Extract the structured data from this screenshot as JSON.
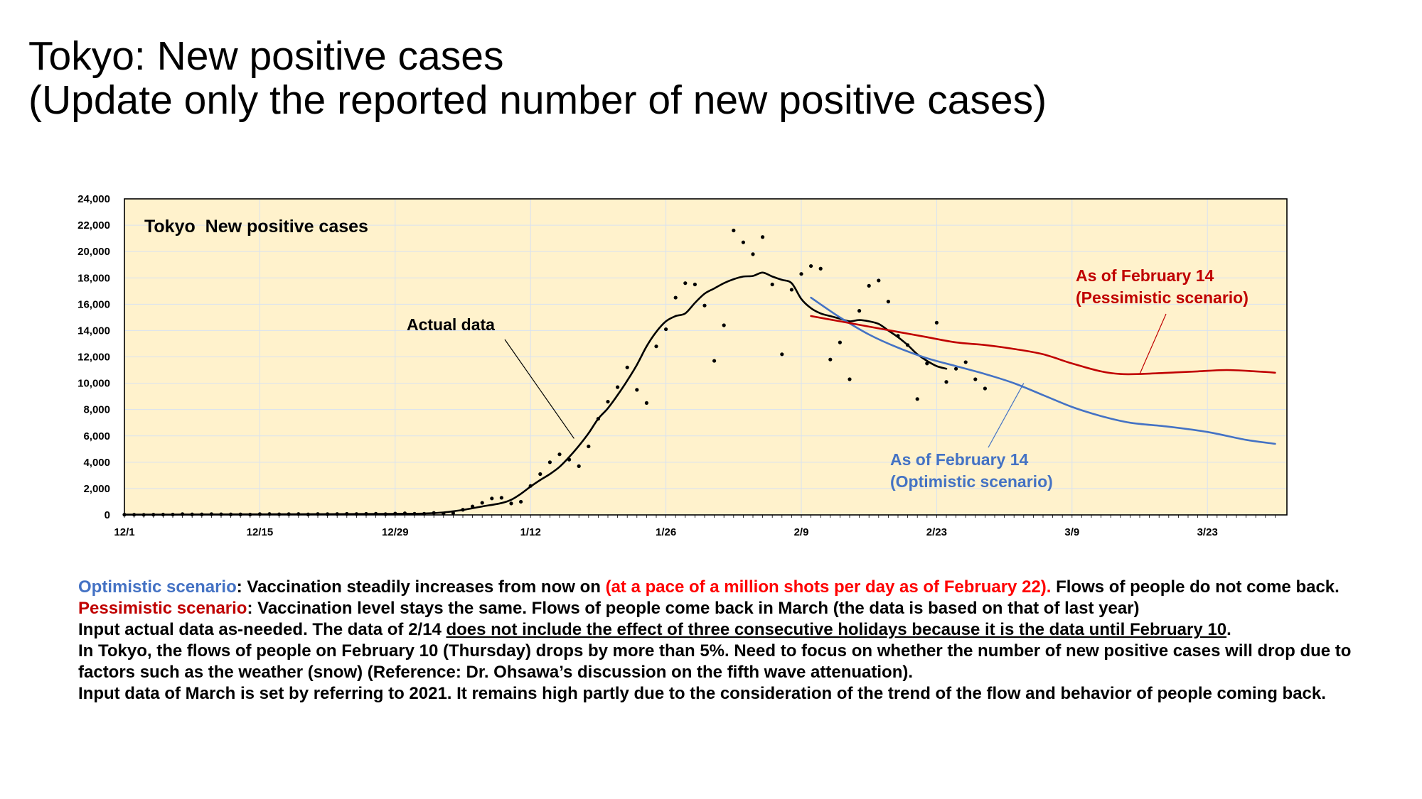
{
  "page": {
    "title_line1": "Tokyo: New positive cases",
    "title_line2": "(Update only the reported number of new positive cases)"
  },
  "notes": {
    "optimistic_label": "Optimistic scenario",
    "optimistic_text1": ": Vaccination steadily increases from now on ",
    "optimistic_highlight": "(at a pace of a million shots per day as of February 22).",
    "optimistic_text2": " Flows of people do not come back.",
    "pessimistic_label": "Pessimistic scenario",
    "pessimistic_text": ": Vaccination level stays the same. Flows of people come back in March (the data is based on that of last year)",
    "input_text1": "Input actual data as-needed. The data of 2/14 ",
    "input_underline": "does not include the effect of three consecutive holidays because it is the data until February 10",
    "input_text2": ".",
    "flows_text": "In Tokyo, the flows of people on February 10 (Thursday) drops by more than 5%. Need to focus on whether the number of new positive cases will drop due to factors such as the weather (snow) (Reference: Dr. Ohsawa’s discussion on the fifth wave attenuation).",
    "march_text": "Input data of March is set by referring to 2021. It remains high partly due to the consideration of the trend of the flow and behavior of people coming back."
  },
  "colors": {
    "plot_background": "#FFF2CC",
    "grid": "#D9E2F0",
    "actual": "#000000",
    "optimistic": "#4472C4",
    "pessimistic": "#C00000",
    "highlight_text": "#FF0000"
  },
  "chart_data": {
    "type": "line",
    "title": "Tokyo  New positive cases",
    "xlabel": "",
    "ylabel": "",
    "x_start_date": "12/1",
    "xlim": [
      0,
      119
    ],
    "ylim": [
      0,
      24000
    ],
    "grid": true,
    "x_ticks": [
      {
        "day": 0,
        "label": "12/1"
      },
      {
        "day": 14,
        "label": "12/15"
      },
      {
        "day": 28,
        "label": "12/29"
      },
      {
        "day": 42,
        "label": "1/12"
      },
      {
        "day": 56,
        "label": "1/26"
      },
      {
        "day": 70,
        "label": "2/9"
      },
      {
        "day": 84,
        "label": "2/23"
      },
      {
        "day": 98,
        "label": "3/9"
      },
      {
        "day": 112,
        "label": "3/23"
      }
    ],
    "y_ticks": [
      {
        "value": 0,
        "label": "0"
      },
      {
        "value": 2000,
        "label": "2,000"
      },
      {
        "value": 4000,
        "label": "4,000"
      },
      {
        "value": 6000,
        "label": "6,000"
      },
      {
        "value": 8000,
        "label": "8,000"
      },
      {
        "value": 10000,
        "label": "10,000"
      },
      {
        "value": 12000,
        "label": "12,000"
      },
      {
        "value": 14000,
        "label": "14,000"
      },
      {
        "value": 16000,
        "label": "16,000"
      },
      {
        "value": 18000,
        "label": "18,000"
      },
      {
        "value": 20000,
        "label": "20,000"
      },
      {
        "value": 22000,
        "label": "22,000"
      },
      {
        "value": 24000,
        "label": "24,000"
      }
    ],
    "daily_points": [
      [
        0,
        20
      ],
      [
        1,
        15
      ],
      [
        2,
        10
      ],
      [
        3,
        20
      ],
      [
        4,
        25
      ],
      [
        5,
        30
      ],
      [
        6,
        60
      ],
      [
        7,
        40
      ],
      [
        8,
        40
      ],
      [
        9,
        60
      ],
      [
        10,
        50
      ],
      [
        11,
        40
      ],
      [
        12,
        40
      ],
      [
        13,
        30
      ],
      [
        14,
        60
      ],
      [
        15,
        70
      ],
      [
        16,
        50
      ],
      [
        17,
        60
      ],
      [
        18,
        70
      ],
      [
        19,
        40
      ],
      [
        20,
        70
      ],
      [
        21,
        60
      ],
      [
        22,
        70
      ],
      [
        23,
        80
      ],
      [
        24,
        70
      ],
      [
        25,
        80
      ],
      [
        26,
        90
      ],
      [
        27,
        60
      ],
      [
        28,
        100
      ],
      [
        29,
        120
      ],
      [
        30,
        90
      ],
      [
        31,
        90
      ],
      [
        32,
        150
      ],
      [
        33,
        100
      ],
      [
        34,
        140
      ],
      [
        35,
        390
      ],
      [
        36,
        640
      ],
      [
        37,
        920
      ],
      [
        38,
        1250
      ],
      [
        39,
        1300
      ],
      [
        40,
        870
      ],
      [
        41,
        1000
      ],
      [
        42,
        2200
      ],
      [
        43,
        3100
      ],
      [
        44,
        4000
      ],
      [
        45,
        4600
      ],
      [
        46,
        4200
      ],
      [
        47,
        3700
      ],
      [
        48,
        5200
      ],
      [
        49,
        7300
      ],
      [
        50,
        8600
      ],
      [
        51,
        9700
      ],
      [
        52,
        11200
      ],
      [
        53,
        9500
      ],
      [
        54,
        8500
      ],
      [
        55,
        12800
      ],
      [
        56,
        14100
      ],
      [
        57,
        16500
      ],
      [
        58,
        17600
      ],
      [
        59,
        17500
      ],
      [
        60,
        15900
      ],
      [
        61,
        11700
      ],
      [
        62,
        14400
      ],
      [
        63,
        21600
      ],
      [
        64,
        20700
      ],
      [
        65,
        19800
      ],
      [
        66,
        21100
      ],
      [
        67,
        17500
      ],
      [
        68,
        12200
      ],
      [
        69,
        17100
      ],
      [
        70,
        18300
      ],
      [
        71,
        18900
      ],
      [
        72,
        18700
      ],
      [
        73,
        11800
      ],
      [
        74,
        13100
      ],
      [
        75,
        10300
      ],
      [
        76,
        15500
      ],
      [
        77,
        17400
      ],
      [
        78,
        17800
      ],
      [
        79,
        16200
      ],
      [
        80,
        13600
      ],
      [
        81,
        12900
      ],
      [
        82,
        8800
      ],
      [
        83,
        11500
      ],
      [
        84,
        14600
      ],
      [
        85,
        10100
      ],
      [
        86,
        11100
      ],
      [
        87,
        11600
      ],
      [
        88,
        10300
      ],
      [
        89,
        9600
      ]
    ],
    "series": [
      {
        "name": "Actual data",
        "points": [
          [
            0,
            20
          ],
          [
            3,
            22
          ],
          [
            7,
            30
          ],
          [
            10,
            38
          ],
          [
            14,
            45
          ],
          [
            18,
            55
          ],
          [
            21,
            60
          ],
          [
            25,
            70
          ],
          [
            28,
            80
          ],
          [
            31,
            110
          ],
          [
            33,
            190
          ],
          [
            35,
            380
          ],
          [
            37,
            640
          ],
          [
            39,
            900
          ],
          [
            40,
            1150
          ],
          [
            41,
            1600
          ],
          [
            42,
            2150
          ],
          [
            43,
            2650
          ],
          [
            44,
            3100
          ],
          [
            45,
            3650
          ],
          [
            46,
            4400
          ],
          [
            47,
            5250
          ],
          [
            48,
            6200
          ],
          [
            49,
            7300
          ],
          [
            50,
            8100
          ],
          [
            51,
            9100
          ],
          [
            52,
            10200
          ],
          [
            53,
            11400
          ],
          [
            54,
            12800
          ],
          [
            55,
            13900
          ],
          [
            56,
            14700
          ],
          [
            57,
            15100
          ],
          [
            58,
            15300
          ],
          [
            59,
            16100
          ],
          [
            60,
            16800
          ],
          [
            61,
            17200
          ],
          [
            62,
            17600
          ],
          [
            63,
            17900
          ],
          [
            64,
            18100
          ],
          [
            65,
            18150
          ],
          [
            66,
            18400
          ],
          [
            67,
            18100
          ],
          [
            68,
            17850
          ],
          [
            69,
            17600
          ],
          [
            70,
            16400
          ],
          [
            71,
            15700
          ],
          [
            72,
            15300
          ],
          [
            73,
            15100
          ],
          [
            74,
            14900
          ],
          [
            75,
            14700
          ],
          [
            76,
            14800
          ],
          [
            77,
            14700
          ],
          [
            78,
            14500
          ],
          [
            79,
            14000
          ],
          [
            80,
            13500
          ],
          [
            81,
            12900
          ],
          [
            82,
            12200
          ],
          [
            83,
            11700
          ],
          [
            84,
            11300
          ],
          [
            85,
            11100
          ]
        ]
      },
      {
        "name": "As of February 14 (Optimistic scenario)",
        "points": [
          [
            71,
            16500
          ],
          [
            74,
            15000
          ],
          [
            77,
            13700
          ],
          [
            80,
            12700
          ],
          [
            83,
            11900
          ],
          [
            86,
            11300
          ],
          [
            89,
            10700
          ],
          [
            92,
            10000
          ],
          [
            95,
            9100
          ],
          [
            98,
            8200
          ],
          [
            101,
            7500
          ],
          [
            104,
            7000
          ],
          [
            108,
            6700
          ],
          [
            112,
            6300
          ],
          [
            116,
            5700
          ],
          [
            119,
            5400
          ]
        ]
      },
      {
        "name": "As of February 14 (Pessimistic scenario)",
        "points": [
          [
            71,
            15100
          ],
          [
            74,
            14700
          ],
          [
            77,
            14300
          ],
          [
            80,
            13900
          ],
          [
            83,
            13500
          ],
          [
            86,
            13100
          ],
          [
            89,
            12900
          ],
          [
            92,
            12600
          ],
          [
            95,
            12200
          ],
          [
            98,
            11500
          ],
          [
            101,
            10900
          ],
          [
            103,
            10700
          ],
          [
            105,
            10700
          ],
          [
            108,
            10800
          ],
          [
            111,
            10900
          ],
          [
            114,
            11000
          ],
          [
            117,
            10900
          ],
          [
            119,
            10800
          ]
        ]
      }
    ],
    "annotations": [
      {
        "text": "Actual data",
        "x": 46.5,
        "y": 5800
      },
      {
        "text": "As of February 14",
        "text2": "(Pessimistic scenario)",
        "x": 105,
        "y": 10700
      },
      {
        "text": "As of February 14",
        "text2": "(Optimistic scenario)",
        "x": 93,
        "y": 10000
      }
    ]
  }
}
